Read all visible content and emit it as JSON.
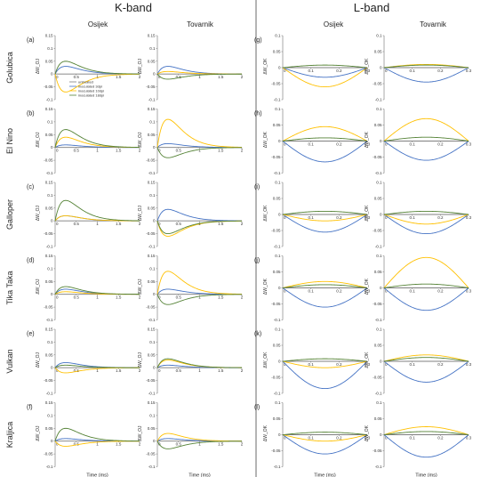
{
  "figure": {
    "bands": [
      "K-band",
      "L-band"
    ],
    "sites": [
      "Osijek",
      "Tovarnik"
    ],
    "varieties": [
      "Golubica",
      "El Nino",
      "Galloper",
      "Tika Taka",
      "Vulkan",
      "Kraljica"
    ],
    "xlabel": "Time (ms)",
    "k_ylabel": "ΔW_OJ",
    "l_ylabel": "ΔW_OK",
    "colors": {
      "untreated": "#7f7f7f",
      "3dpi": "#4472c4",
      "10dpi": "#ffc000",
      "18dpi": "#548235"
    }
  },
  "chart_data": {
    "type": "line",
    "series_names": [
      "untreated",
      "inoculated 3dpi",
      "inoculated 10dpi",
      "inoculated 18dpi"
    ],
    "k_band": {
      "xlim": [
        0,
        2
      ],
      "ylim": [
        -0.1,
        0.15
      ],
      "x_ticks": [
        0.5,
        1,
        1.5,
        2
      ],
      "y_ticks": [
        -0.1,
        -0.05,
        0,
        0.05,
        0.1,
        0.15
      ],
      "shape": "fast rise to peak near t≈0.25 ms then exponential decay toward 0 by 2 ms"
    },
    "l_band": {
      "xlim": [
        0,
        0.3
      ],
      "ylim": [
        -0.1,
        0.1
      ],
      "x_ticks": [
        0.1,
        0.2,
        0.3
      ],
      "y_ticks": [
        -0.1,
        -0.05,
        0,
        0.05,
        0.1
      ],
      "shape": "half-sine hump centred near t≈0.15 ms"
    },
    "peaks": {
      "k_osijek": [
        [
          0,
          0.03,
          -0.07,
          0.05
        ],
        [
          0,
          0.01,
          0.04,
          0.07
        ],
        [
          0,
          0.02,
          0.02,
          0.08
        ],
        [
          0,
          0.02,
          0.01,
          0.03
        ],
        [
          0,
          0.02,
          -0.02,
          0.01
        ],
        [
          0,
          0.01,
          -0.02,
          0.05
        ]
      ],
      "k_tovarnik": [
        [
          0,
          0.03,
          0.01,
          -0.02
        ],
        [
          0,
          0.015,
          0.11,
          -0.04
        ],
        [
          0,
          0.045,
          -0.06,
          -0.05
        ],
        [
          0,
          0.02,
          0.09,
          -0.04
        ],
        [
          0,
          0.01,
          0.03,
          0.035
        ],
        [
          0,
          0.01,
          0.03,
          -0.03
        ]
      ],
      "l_osijek": [
        [
          0,
          -0.03,
          -0.06,
          0.008
        ],
        [
          0,
          -0.065,
          0.045,
          0.01
        ],
        [
          0,
          -0.055,
          -0.02,
          0.01
        ],
        [
          0,
          -0.06,
          0.02,
          0.01
        ],
        [
          0,
          -0.085,
          -0.02,
          0.008
        ],
        [
          0,
          -0.06,
          -0.02,
          0.008
        ]
      ],
      "l_tovarnik": [
        [
          0,
          -0.045,
          0.01,
          0.008
        ],
        [
          0,
          -0.06,
          0.07,
          0.012
        ],
        [
          0,
          -0.06,
          -0.03,
          0.01
        ],
        [
          0,
          -0.07,
          0.095,
          0.012
        ],
        [
          0,
          -0.065,
          0.02,
          0.012
        ],
        [
          0,
          -0.07,
          0.025,
          0.01
        ]
      ]
    }
  }
}
